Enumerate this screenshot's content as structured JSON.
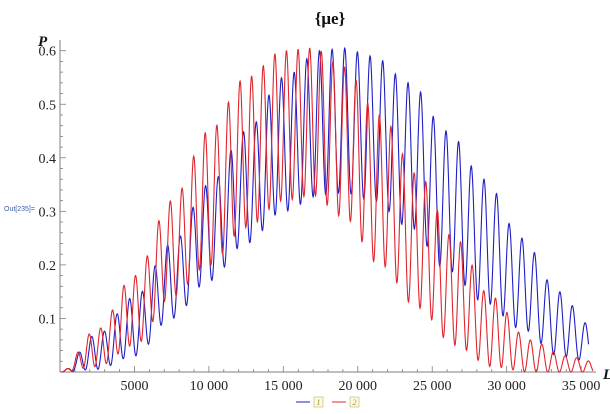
{
  "cell": {
    "output_label": "Out[235]="
  },
  "chart_data": {
    "type": "line",
    "title": "{μe}",
    "xlabel": "L",
    "ylabel": "P",
    "xlim": [
      0,
      36000
    ],
    "ylim": [
      0,
      0.62
    ],
    "x_ticks": [
      5000,
      10000,
      15000,
      20000,
      25000,
      30000,
      35000
    ],
    "x_tick_labels": [
      "5000",
      "10 000",
      "15 000",
      "20 000",
      "25 000",
      "30 000",
      "35 000"
    ],
    "y_ticks": [
      0.1,
      0.2,
      0.3,
      0.4,
      0.5,
      0.6
    ],
    "y_tick_labels": [
      "0.1",
      "0.2",
      "0.3",
      "0.4",
      "0.5",
      "0.6"
    ],
    "legend_position": "bottom",
    "series": [
      {
        "name": "1",
        "color": "#1f1fc8",
        "envelope": {
          "x": [
            0,
            2500,
            5000,
            7500,
            10000,
            12500,
            15000,
            17500,
            19000,
            21000,
            23500,
            26000,
            28500,
            31000,
            33500,
            35500
          ],
          "max": [
            0.0,
            0.07,
            0.14,
            0.24,
            0.35,
            0.45,
            0.55,
            0.6,
            0.605,
            0.59,
            0.54,
            0.45,
            0.36,
            0.25,
            0.15,
            0.09
          ],
          "min": [
            0.0,
            0.005,
            0.03,
            0.1,
            0.17,
            0.24,
            0.3,
            0.33,
            0.335,
            0.32,
            0.27,
            0.19,
            0.13,
            0.08,
            0.03,
            0.02
          ]
        },
        "oscillation_period": 850
      },
      {
        "name": "2",
        "color": "#e0262e",
        "envelope": {
          "x": [
            0,
            2500,
            5000,
            7500,
            10000,
            12500,
            15000,
            17000,
            19000,
            21500,
            24000,
            26500,
            29000,
            31500,
            34000,
            35800
          ],
          "max": [
            0.0,
            0.08,
            0.18,
            0.32,
            0.45,
            0.55,
            0.6,
            0.605,
            0.57,
            0.48,
            0.37,
            0.25,
            0.14,
            0.06,
            0.03,
            0.02
          ],
          "min": [
            0.0,
            0.01,
            0.05,
            0.14,
            0.2,
            0.27,
            0.32,
            0.33,
            0.29,
            0.2,
            0.12,
            0.05,
            0.01,
            0.0,
            0.0,
            0.0
          ]
        },
        "oscillation_period": 780
      }
    ]
  }
}
